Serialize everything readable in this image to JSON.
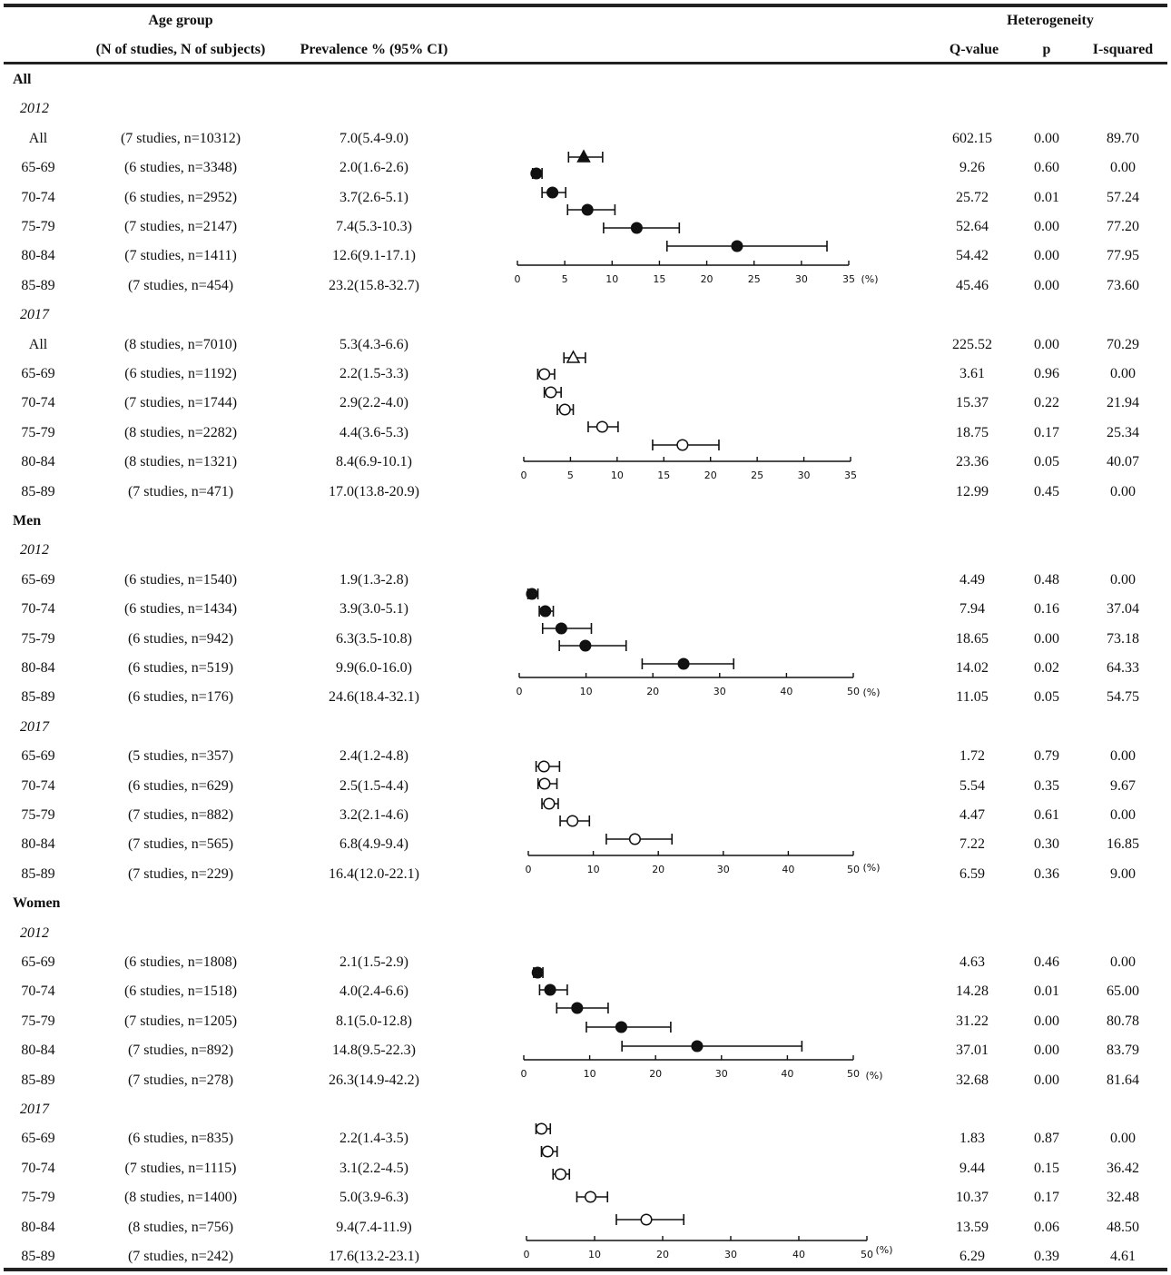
{
  "header": {
    "age_group": "Age group",
    "n_label": "(N of studies, N of subjects)",
    "prevalence": "Prevalence % (95% CI)",
    "heterogeneity": "Heterogeneity",
    "q": "Q-value",
    "p": "p",
    "i2": "I-squared"
  },
  "sections": [
    {
      "label": "All",
      "years": [
        {
          "year": "2012",
          "rows": [
            {
              "group": "All",
              "n": "(7 studies, n=10312)",
              "prev": "7.0(5.4-9.0)",
              "q": "602.15",
              "p": "0.00",
              "i2": "89.70"
            },
            {
              "group": "65-69",
              "n": "(6 studies, n=3348)",
              "prev": "2.0(1.6-2.6)",
              "q": "9.26",
              "p": "0.60",
              "i2": "0.00"
            },
            {
              "group": "70-74",
              "n": "(6 studies, n=2952)",
              "prev": "3.7(2.6-5.1)",
              "q": "25.72",
              "p": "0.01",
              "i2": "57.24"
            },
            {
              "group": "75-79",
              "n": "(7 studies, n=2147)",
              "prev": "7.4(5.3-10.3)",
              "q": "52.64",
              "p": "0.00",
              "i2": "77.20"
            },
            {
              "group": "80-84",
              "n": "(7 studies, n=1411)",
              "prev": "12.6(9.1-17.1)",
              "q": "54.42",
              "p": "0.00",
              "i2": "77.95"
            },
            {
              "group": "85-89",
              "n": "(7 studies, n=454)",
              "prev": "23.2(15.8-32.7)",
              "q": "45.46",
              "p": "0.00",
              "i2": "73.60"
            }
          ]
        },
        {
          "year": "2017",
          "rows": [
            {
              "group": "All",
              "n": "(8 studies, n=7010)",
              "prev": "5.3(4.3-6.6)",
              "q": "225.52",
              "p": "0.00",
              "i2": "70.29"
            },
            {
              "group": "65-69",
              "n": "(6 studies, n=1192)",
              "prev": "2.2(1.5-3.3)",
              "q": "3.61",
              "p": "0.96",
              "i2": "0.00"
            },
            {
              "group": "70-74",
              "n": "(7 studies, n=1744)",
              "prev": "2.9(2.2-4.0)",
              "q": "15.37",
              "p": "0.22",
              "i2": "21.94"
            },
            {
              "group": "75-79",
              "n": "(8 studies, n=2282)",
              "prev": "4.4(3.6-5.3)",
              "q": "18.75",
              "p": "0.17",
              "i2": "25.34"
            },
            {
              "group": "80-84",
              "n": "(8 studies, n=1321)",
              "prev": "8.4(6.9-10.1)",
              "q": "23.36",
              "p": "0.05",
              "i2": "40.07"
            },
            {
              "group": "85-89",
              "n": "(7 studies, n=471)",
              "prev": "17.0(13.8-20.9)",
              "q": "12.99",
              "p": "0.45",
              "i2": "0.00"
            }
          ]
        }
      ]
    },
    {
      "label": "Men",
      "years": [
        {
          "year": "2012",
          "rows": [
            {
              "group": "65-69",
              "n": "(6 studies, n=1540)",
              "prev": "1.9(1.3-2.8)",
              "q": "4.49",
              "p": "0.48",
              "i2": "0.00"
            },
            {
              "group": "70-74",
              "n": "(6 studies, n=1434)",
              "prev": "3.9(3.0-5.1)",
              "q": "7.94",
              "p": "0.16",
              "i2": "37.04"
            },
            {
              "group": "75-79",
              "n": "(6 studies, n=942)",
              "prev": "6.3(3.5-10.8)",
              "q": "18.65",
              "p": "0.00",
              "i2": "73.18"
            },
            {
              "group": "80-84",
              "n": "(6 studies, n=519)",
              "prev": "9.9(6.0-16.0)",
              "q": "14.02",
              "p": "0.02",
              "i2": "64.33"
            },
            {
              "group": "85-89",
              "n": "(6 studies, n=176)",
              "prev": "24.6(18.4-32.1)",
              "q": "11.05",
              "p": "0.05",
              "i2": "54.75"
            }
          ]
        },
        {
          "year": "2017",
          "rows": [
            {
              "group": "65-69",
              "n": "(5 studies, n=357)",
              "prev": "2.4(1.2-4.8)",
              "q": "1.72",
              "p": "0.79",
              "i2": "0.00"
            },
            {
              "group": "70-74",
              "n": "(6 studies, n=629)",
              "prev": "2.5(1.5-4.4)",
              "q": "5.54",
              "p": "0.35",
              "i2": "9.67"
            },
            {
              "group": "75-79",
              "n": "(7 studies, n=882)",
              "prev": "3.2(2.1-4.6)",
              "q": "4.47",
              "p": "0.61",
              "i2": "0.00"
            },
            {
              "group": "80-84",
              "n": "(7 studies, n=565)",
              "prev": "6.8(4.9-9.4)",
              "q": "7.22",
              "p": "0.30",
              "i2": "16.85"
            },
            {
              "group": "85-89",
              "n": "(7 studies, n=229)",
              "prev": "16.4(12.0-22.1)",
              "q": "6.59",
              "p": "0.36",
              "i2": "9.00"
            }
          ]
        }
      ]
    },
    {
      "label": "Women",
      "years": [
        {
          "year": "2012",
          "rows": [
            {
              "group": "65-69",
              "n": "(6 studies, n=1808)",
              "prev": "2.1(1.5-2.9)",
              "q": "4.63",
              "p": "0.46",
              "i2": "0.00"
            },
            {
              "group": "70-74",
              "n": "(6 studies, n=1518)",
              "prev": "4.0(2.4-6.6)",
              "q": "14.28",
              "p": "0.01",
              "i2": "65.00"
            },
            {
              "group": "75-79",
              "n": "(7 studies, n=1205)",
              "prev": "8.1(5.0-12.8)",
              "q": "31.22",
              "p": "0.00",
              "i2": "80.78"
            },
            {
              "group": "80-84",
              "n": "(7 studies, n=892)",
              "prev": "14.8(9.5-22.3)",
              "q": "37.01",
              "p": "0.00",
              "i2": "83.79"
            },
            {
              "group": "85-89",
              "n": "(7 studies, n=278)",
              "prev": "26.3(14.9-42.2)",
              "q": "32.68",
              "p": "0.00",
              "i2": "81.64"
            }
          ]
        },
        {
          "year": "2017",
          "rows": [
            {
              "group": "65-69",
              "n": "(6 studies, n=835)",
              "prev": "2.2(1.4-3.5)",
              "q": "1.83",
              "p": "0.87",
              "i2": "0.00"
            },
            {
              "group": "70-74",
              "n": "(7 studies, n=1115)",
              "prev": "3.1(2.2-4.5)",
              "q": "9.44",
              "p": "0.15",
              "i2": "36.42"
            },
            {
              "group": "75-79",
              "n": "(8 studies, n=1400)",
              "prev": "5.0(3.9-6.3)",
              "q": "10.37",
              "p": "0.17",
              "i2": "32.48"
            },
            {
              "group": "80-84",
              "n": "(8 studies, n=756)",
              "prev": "9.4(7.4-11.9)",
              "q": "13.59",
              "p": "0.06",
              "i2": "48.50"
            },
            {
              "group": "85-89",
              "n": "(7 studies, n=242)",
              "prev": "17.6(13.2-23.1)",
              "q": "6.29",
              "p": "0.39",
              "i2": "4.61"
            }
          ]
        }
      ]
    }
  ],
  "chart_data": [
    {
      "type": "scatter",
      "panel": "All 2012",
      "filled": true,
      "xlim": [
        0,
        35
      ],
      "xticks": [
        0,
        5,
        10,
        15,
        20,
        25,
        30,
        35
      ],
      "unit": "(%)",
      "points": [
        {
          "y": 7.0,
          "lo": 5.4,
          "hi": 9.0,
          "marker": "triangle"
        },
        {
          "y": 2.0,
          "lo": 1.6,
          "hi": 2.6
        },
        {
          "y": 3.7,
          "lo": 2.6,
          "hi": 5.1
        },
        {
          "y": 7.4,
          "lo": 5.3,
          "hi": 10.3
        },
        {
          "y": 12.6,
          "lo": 9.1,
          "hi": 17.1
        },
        {
          "y": 23.2,
          "lo": 15.8,
          "hi": 32.7
        }
      ]
    },
    {
      "type": "scatter",
      "panel": "All 2017",
      "filled": false,
      "xlim": [
        0,
        35
      ],
      "xticks": [
        0,
        5,
        10,
        15,
        20,
        25,
        30,
        35
      ],
      "unit": "",
      "points": [
        {
          "y": 5.3,
          "lo": 4.3,
          "hi": 6.6,
          "marker": "triangle"
        },
        {
          "y": 2.2,
          "lo": 1.5,
          "hi": 3.3
        },
        {
          "y": 2.9,
          "lo": 2.2,
          "hi": 4.0
        },
        {
          "y": 4.4,
          "lo": 3.6,
          "hi": 5.3
        },
        {
          "y": 8.4,
          "lo": 6.9,
          "hi": 10.1
        },
        {
          "y": 17.0,
          "lo": 13.8,
          "hi": 20.9
        }
      ]
    },
    {
      "type": "scatter",
      "panel": "Men 2012",
      "filled": true,
      "xlim": [
        0,
        50
      ],
      "xticks": [
        0,
        10,
        20,
        30,
        40,
        50
      ],
      "unit": "(%)",
      "points": [
        {
          "y": 1.9,
          "lo": 1.3,
          "hi": 2.8
        },
        {
          "y": 3.9,
          "lo": 3.0,
          "hi": 5.1
        },
        {
          "y": 6.3,
          "lo": 3.5,
          "hi": 10.8
        },
        {
          "y": 9.9,
          "lo": 6.0,
          "hi": 16.0
        },
        {
          "y": 24.6,
          "lo": 18.4,
          "hi": 32.1
        }
      ]
    },
    {
      "type": "scatter",
      "panel": "Men 2017",
      "filled": false,
      "xlim": [
        0,
        50
      ],
      "xticks": [
        0,
        10,
        20,
        30,
        40,
        50
      ],
      "unit": "(%)",
      "points": [
        {
          "y": 2.4,
          "lo": 1.2,
          "hi": 4.8
        },
        {
          "y": 2.5,
          "lo": 1.5,
          "hi": 4.4
        },
        {
          "y": 3.2,
          "lo": 2.1,
          "hi": 4.6
        },
        {
          "y": 6.8,
          "lo": 4.9,
          "hi": 9.4
        },
        {
          "y": 16.4,
          "lo": 12.0,
          "hi": 22.1
        }
      ]
    },
    {
      "type": "scatter",
      "panel": "Women 2012",
      "filled": true,
      "xlim": [
        0,
        50
      ],
      "xticks": [
        0,
        10,
        20,
        30,
        40,
        50
      ],
      "unit": "(%)",
      "points": [
        {
          "y": 2.1,
          "lo": 1.5,
          "hi": 2.9
        },
        {
          "y": 4.0,
          "lo": 2.4,
          "hi": 6.6
        },
        {
          "y": 8.1,
          "lo": 5.0,
          "hi": 12.8
        },
        {
          "y": 14.8,
          "lo": 9.5,
          "hi": 22.3
        },
        {
          "y": 26.3,
          "lo": 14.9,
          "hi": 42.2
        }
      ]
    },
    {
      "type": "scatter",
      "panel": "Women 2017",
      "filled": false,
      "xlim": [
        0,
        50
      ],
      "xticks": [
        0,
        10,
        20,
        30,
        40,
        50
      ],
      "unit": "(%)",
      "points": [
        {
          "y": 2.2,
          "lo": 1.4,
          "hi": 3.5
        },
        {
          "y": 3.1,
          "lo": 2.2,
          "hi": 4.5
        },
        {
          "y": 5.0,
          "lo": 3.9,
          "hi": 6.3
        },
        {
          "y": 9.4,
          "lo": 7.4,
          "hi": 11.9
        },
        {
          "y": 17.6,
          "lo": 13.2,
          "hi": 23.1
        }
      ]
    }
  ]
}
